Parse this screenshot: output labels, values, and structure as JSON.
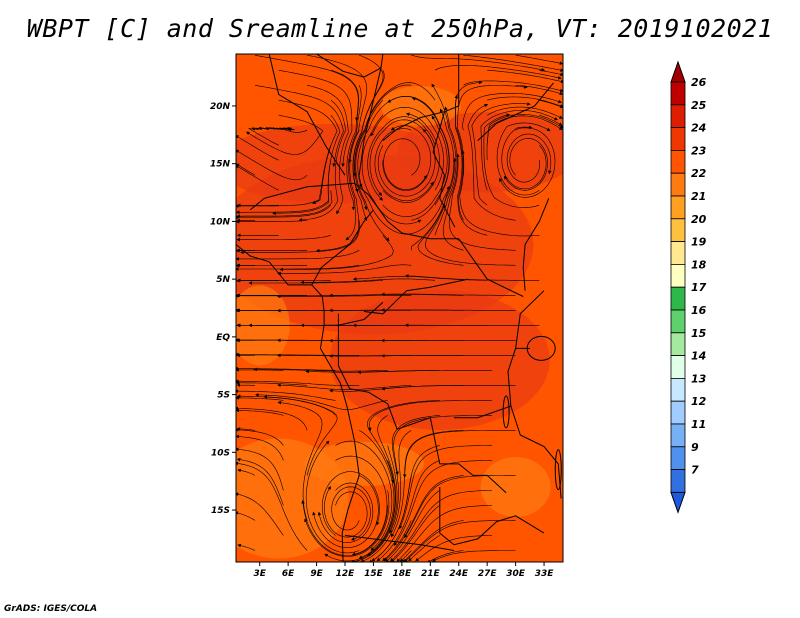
{
  "title": "WBPT [C] and Sreamline at 250hPa, VT: 2019102021",
  "credit": "GrADS: IGES/COLA",
  "map": {
    "lat_labels": [
      "20N",
      "15N",
      "10N",
      "5N",
      "EQ",
      "5S",
      "10S",
      "15S"
    ],
    "lat_values": [
      20,
      15,
      10,
      5,
      0,
      -5,
      -10,
      -15
    ],
    "lon_labels": [
      "3E",
      "6E",
      "9E",
      "12E",
      "15E",
      "18E",
      "21E",
      "24E",
      "27E",
      "30E",
      "33E"
    ],
    "lon_values": [
      3,
      6,
      9,
      12,
      15,
      18,
      21,
      24,
      27,
      30,
      33
    ],
    "lat_range": [
      -19.5,
      24.5
    ],
    "lon_range": [
      0.5,
      35
    ],
    "field_colors": {
      "background": "#ff5500",
      "warm": "#e83a12",
      "cool": "#ff7a10"
    },
    "vortex_centers": [
      {
        "name": "cyclonic-north",
        "lon": 18.3,
        "lat": 15.3
      },
      {
        "name": "anticyclonic-south",
        "lon": 12.4,
        "lat": -15.5
      }
    ]
  },
  "colorbar": {
    "levels": [
      "26",
      "25",
      "24",
      "23",
      "22",
      "21",
      "20",
      "19",
      "18",
      "17",
      "16",
      "15",
      "14",
      "13",
      "12",
      "11",
      "9",
      "7"
    ],
    "colors": [
      "#a50000",
      "#c00000",
      "#dd1e00",
      "#ee3800",
      "#ff5500",
      "#ff7a10",
      "#ffa020",
      "#ffc040",
      "#ffe890",
      "#ffffc0",
      "#2fb84a",
      "#5ed06c",
      "#a5e8a0",
      "#e0ffe8",
      "#c8e8ff",
      "#a0ccff",
      "#78b0f5",
      "#5090ee",
      "#3070e0",
      "#1e5ae0"
    ]
  }
}
